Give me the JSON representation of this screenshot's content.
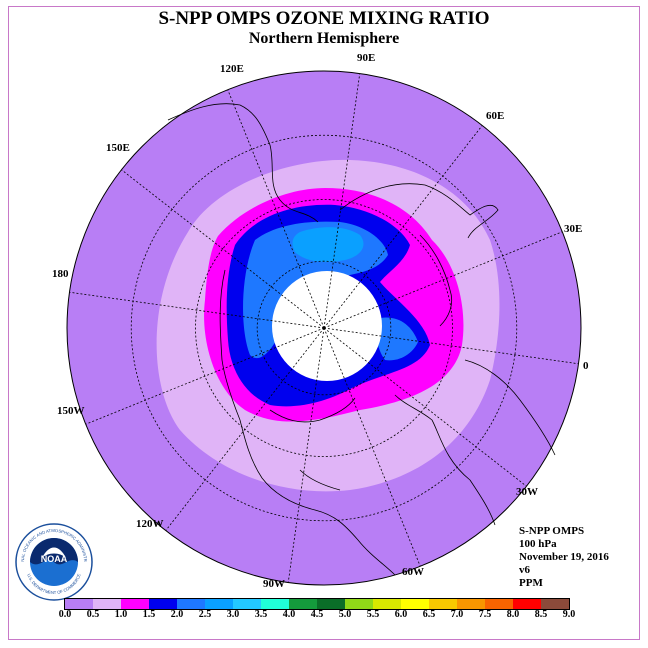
{
  "header": {
    "title": "S-NPP OMPS OZONE MIXING RATIO",
    "subtitle": "Northern Hemisphere"
  },
  "map": {
    "projection": "north polar stereographic",
    "background_color": "#b87ef5",
    "longitude_labels": [
      "90E",
      "60E",
      "30E",
      "0",
      "30W",
      "60W",
      "90W",
      "120W",
      "150W",
      "180",
      "150E",
      "120E"
    ],
    "zones": [
      {
        "range": "0.5-1.0",
        "color": "#e0b4f7"
      },
      {
        "range": "1.0-1.5",
        "color": "#ff00ff"
      },
      {
        "range": "1.5-2.0",
        "color": "#0000ee"
      },
      {
        "range": "2.0-2.5",
        "color": "#1e78ff"
      },
      {
        "range": "2.5-3.0",
        "color": "#0aa0ff"
      },
      {
        "range": "no data",
        "color": "#ffffff"
      }
    ]
  },
  "info": {
    "line1": "S-NPP OMPS",
    "line2": "100 hPa",
    "line3": "November 19, 2016",
    "line4": "v6",
    "line5": "PPM"
  },
  "logo": {
    "text": "NOAA",
    "ring_text": "NATIONAL OCEANIC AND ATMOSPHERIC ADMINISTRATION",
    "ring_text_bottom": "U.S. DEPARTMENT OF COMMERCE"
  },
  "colorbar": {
    "colors": [
      "#b87ef5",
      "#e0b4f7",
      "#ff00ff",
      "#0000ee",
      "#1e78ff",
      "#0aa0ff",
      "#23c8ff",
      "#20ffd8",
      "#149b3c",
      "#0a6e28",
      "#90d818",
      "#d8e800",
      "#ffff00",
      "#f8c800",
      "#f89600",
      "#f86400",
      "#ff0000",
      "#8b4a3a"
    ],
    "ticks": [
      "0.0",
      "0.5",
      "1.0",
      "1.5",
      "2.0",
      "2.5",
      "3.0",
      "3.5",
      "4.0",
      "4.5",
      "5.0",
      "5.5",
      "6.0",
      "6.5",
      "7.0",
      "7.5",
      "8.0",
      "8.5",
      "9.0"
    ]
  }
}
